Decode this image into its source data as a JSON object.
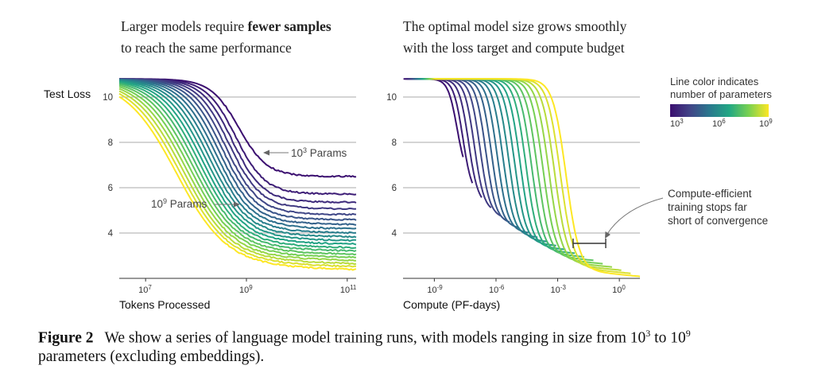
{
  "left_title": {
    "line1_prefix": "Larger models require ",
    "line1_bold": "fewer samples",
    "line2": "to reach the same performance"
  },
  "right_title": {
    "line1": "The optimal model size grows smoothly",
    "line2": "with the loss target and compute budget"
  },
  "legend": {
    "title_line1": "Line color indicates",
    "title_line2": "number of parameters",
    "colormap": [
      "#3b0f70",
      "#414487",
      "#2a788e",
      "#22a884",
      "#7ad151",
      "#fde725"
    ],
    "ticks": [
      {
        "base": "10",
        "exp": "3"
      },
      {
        "base": "10",
        "exp": "6"
      },
      {
        "base": "10",
        "exp": "9"
      }
    ]
  },
  "caption": {
    "label": "Figure 2",
    "text_a": "We show a series of language model training runs, with models ranging in size from 10",
    "sup_a": "3",
    "text_b": " to 10",
    "sup_b": "9",
    "line2": "parameters (excluding embeddings)."
  },
  "chart_data": [
    {
      "type": "line",
      "panel": "left",
      "xlabel": "Tokens Processed",
      "ylabel": "Test Loss",
      "x_scale": "log",
      "xlim": [
        3000000,
        150000000000
      ],
      "ylim": [
        2.0,
        11.0
      ],
      "y_ticks": [
        "10",
        "8",
        "6",
        "4"
      ],
      "x_ticks": [
        {
          "base": "10",
          "exp": "7",
          "value": 10000000
        },
        {
          "base": "10",
          "exp": "9",
          "value": 1000000000
        },
        {
          "base": "10",
          "exp": "11",
          "value": 100000000000
        }
      ],
      "grid": "horizontal",
      "n_series": 20,
      "series_params_range": [
        1000,
        1000000000
      ],
      "initial_loss": 10.8,
      "final_loss_smallest": 6.5,
      "final_loss_largest": 2.6,
      "annotations": [
        {
          "base": "10",
          "exp": "3",
          "suffix": " Params"
        },
        {
          "base": "10",
          "exp": "9",
          "suffix": " Params"
        }
      ]
    },
    {
      "type": "line",
      "panel": "right",
      "xlabel": "Compute (PF-days)",
      "x_scale": "log",
      "xlim": [
        3e-11,
        10
      ],
      "ylim": [
        2.0,
        11.0
      ],
      "y_ticks": [
        "10",
        "8",
        "6",
        "4"
      ],
      "x_ticks": [
        {
          "base": "10",
          "exp": "-9",
          "value": 1e-09
        },
        {
          "base": "10",
          "exp": "-6",
          "value": 1e-06
        },
        {
          "base": "10",
          "exp": "-3",
          "value": 0.001
        },
        {
          "base": "10",
          "exp": "0",
          "value": 1
        }
      ],
      "grid": "horizontal",
      "n_series": 20,
      "annotation": {
        "line1": "Compute-efficient",
        "line2": "training stops far",
        "line3": "short of convergence"
      }
    }
  ]
}
